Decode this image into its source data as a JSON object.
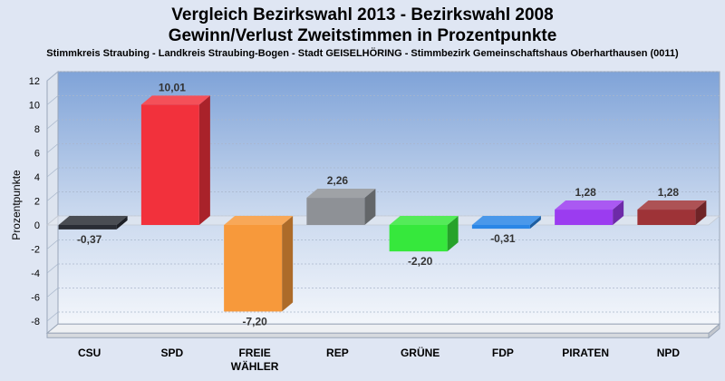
{
  "header": {
    "title_line1": "Vergleich Bezirkswahl 2013 - Bezirkswahl 2008",
    "title_line2": "Gewinn/Verlust Zweitstimmen in Prozentpunkte",
    "subtitle": "Stimmkreis Straubing - Landkreis Straubing-Bogen - Stadt GEISELHÖRING - Stimmbezirk Gemeinschaftshaus Oberharthausen (0011)"
  },
  "chart_data": {
    "type": "bar",
    "title": "Vergleich Bezirkswahl 2013 - Bezirkswahl 2008 / Gewinn/Verlust Zweitstimmen in Prozentpunkte",
    "xlabel": "",
    "ylabel": "Prozentpunkte",
    "ylim": [
      -9,
      12
    ],
    "yticks": [
      12,
      10,
      8,
      6,
      4,
      2,
      0,
      -2,
      -4,
      -6,
      -8
    ],
    "grid": true,
    "categories": [
      "CSU",
      "SPD",
      "FREIE WÄHLER",
      "REP",
      "GRÜNE",
      "FDP",
      "PIRATEN",
      "NPD"
    ],
    "category_lines": [
      [
        "CSU"
      ],
      [
        "SPD"
      ],
      [
        "FREIE",
        "WÄHLER"
      ],
      [
        "REP"
      ],
      [
        "GRÜNE"
      ],
      [
        "FDP"
      ],
      [
        "PIRATEN"
      ],
      [
        "NPD"
      ]
    ],
    "values": [
      -0.37,
      10.01,
      -7.2,
      2.26,
      -2.2,
      -0.31,
      1.28,
      1.28
    ],
    "labels": [
      "-0,37",
      "10,01",
      "-7,20",
      "2,26",
      "-2,20",
      "-0,31",
      "1,28",
      "1,28"
    ],
    "colors": [
      "#2a2d35",
      "#f2313c",
      "#f7993b",
      "#8e9196",
      "#36e83c",
      "#2a86e6",
      "#9b3cf0",
      "#9e3337"
    ]
  }
}
